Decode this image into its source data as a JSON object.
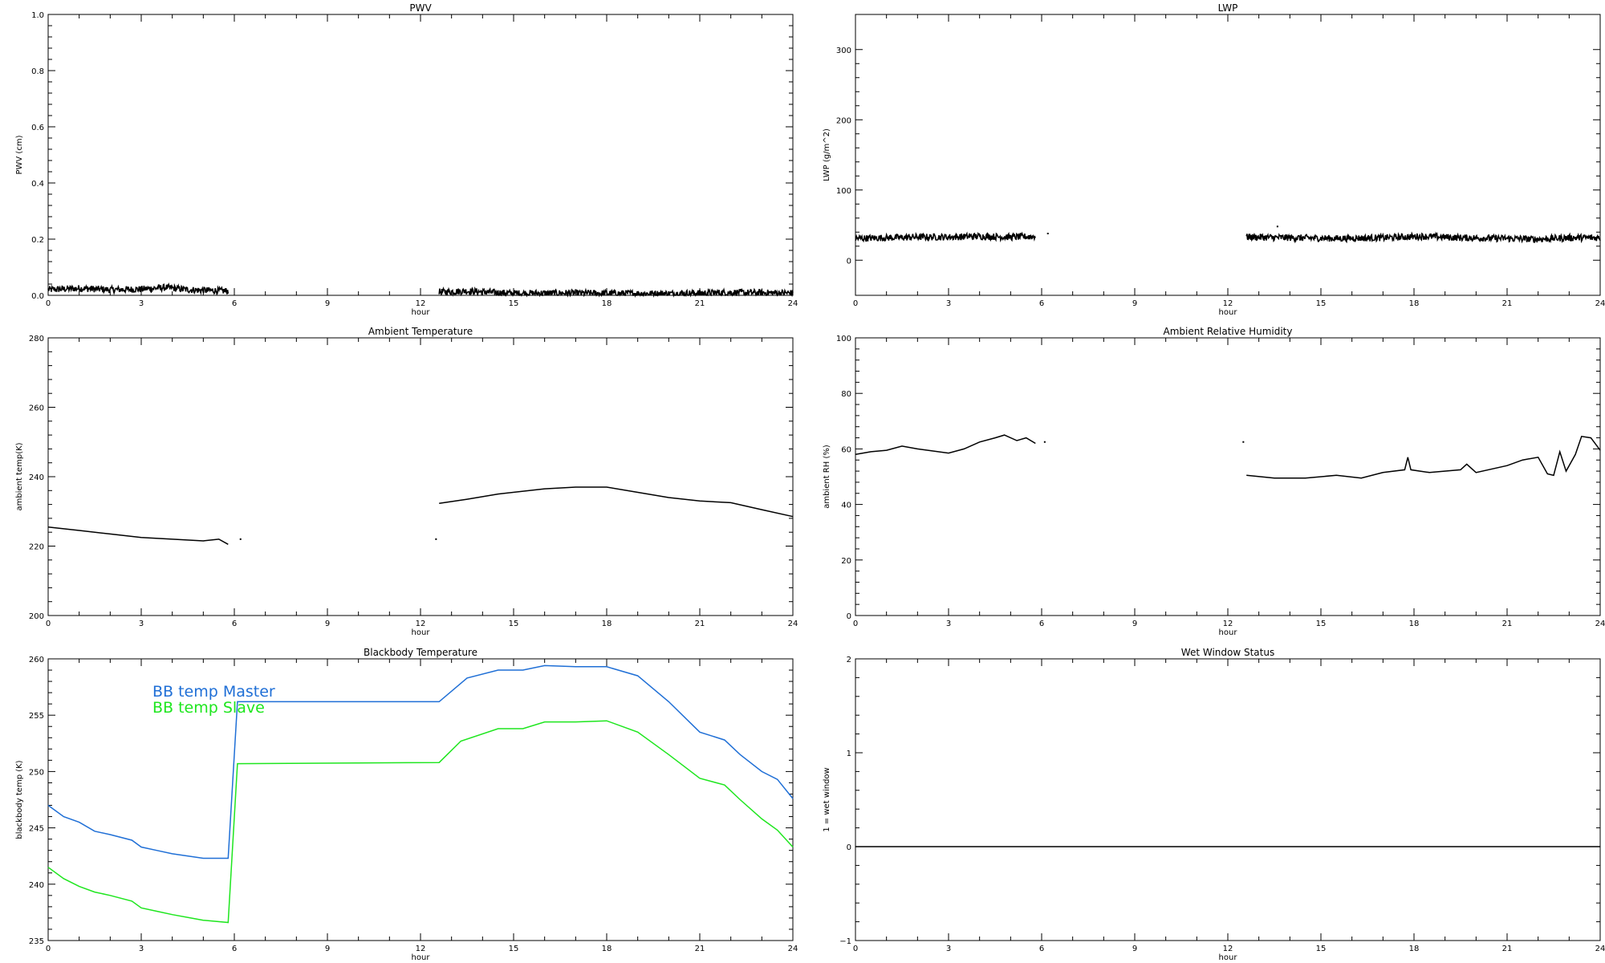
{
  "chart_data": [
    {
      "type": "line",
      "title": "PWV",
      "xlabel": "hour",
      "ylabel": "PWV (cm)",
      "xlim": [
        0,
        24
      ],
      "ylim": [
        0,
        1.0
      ],
      "xticks": [
        0,
        3,
        6,
        9,
        12,
        15,
        18,
        21,
        24
      ],
      "xtick_labels": [
        "0",
        "3",
        "6",
        "9",
        "12",
        "15",
        "18",
        "21",
        "24"
      ],
      "yticks": [
        0,
        0.2,
        0.4,
        0.6,
        0.8,
        1.0
      ],
      "ytick_labels": [
        "0.0",
        "0.2",
        "0.4",
        "0.6",
        "0.8",
        "1.0"
      ],
      "noisy": true,
      "series": [
        {
          "color": "#000000",
          "segments": [
            [
              [
                0,
                0.02
              ],
              [
                1,
                0.025
              ],
              [
                2,
                0.02
              ],
              [
                3,
                0.022
              ],
              [
                3.8,
                0.028
              ],
              [
                4.5,
                0.02
              ],
              [
                5.8,
                0.015
              ]
            ],
            [
              [
                12.6,
                0.012
              ],
              [
                13.5,
                0.015
              ],
              [
                15,
                0.007
              ],
              [
                16.5,
                0.008
              ],
              [
                18,
                0.007
              ],
              [
                20,
                0.006
              ],
              [
                22,
                0.01
              ],
              [
                24,
                0.008
              ]
            ]
          ]
        }
      ]
    },
    {
      "type": "line",
      "title": "LWP",
      "xlabel": "hour",
      "ylabel": "LWP (g/m^2)",
      "xlim": [
        0,
        24
      ],
      "ylim": [
        -50,
        350
      ],
      "xticks": [
        0,
        3,
        6,
        9,
        12,
        15,
        18,
        21,
        24
      ],
      "xtick_labels": [
        "0",
        "3",
        "6",
        "9",
        "12",
        "15",
        "18",
        "21",
        "24"
      ],
      "yticks": [
        0,
        100,
        200,
        300
      ],
      "ytick_labels": [
        "0",
        "100",
        "200",
        "300"
      ],
      "noisy": true,
      "series": [
        {
          "color": "#000000",
          "segments": [
            [
              [
                0,
                31
              ],
              [
                1,
                32
              ],
              [
                2,
                33
              ],
              [
                3,
                33
              ],
              [
                4,
                34
              ],
              [
                5,
                33
              ],
              [
                5.8,
                34
              ]
            ],
            [
              [
                12.6,
                33
              ],
              [
                14,
                32
              ],
              [
                15.5,
                31
              ],
              [
                17,
                32
              ],
              [
                18.3,
                34
              ],
              [
                19.5,
                32
              ],
              [
                21,
                31
              ],
              [
                22,
                30
              ],
              [
                23,
                32
              ],
              [
                24,
                32
              ]
            ]
          ],
          "points": [
            [
              6.2,
              38
            ],
            [
              13.6,
              48
            ]
          ]
        }
      ]
    },
    {
      "type": "line",
      "title": "Ambient Temperature",
      "xlabel": "hour",
      "ylabel": "ambient temp(K)",
      "xlim": [
        0,
        24
      ],
      "ylim": [
        200,
        280
      ],
      "xticks": [
        0,
        3,
        6,
        9,
        12,
        15,
        18,
        21,
        24
      ],
      "xtick_labels": [
        "0",
        "3",
        "6",
        "9",
        "12",
        "15",
        "18",
        "21",
        "24"
      ],
      "yticks": [
        200,
        220,
        240,
        260,
        280
      ],
      "ytick_labels": [
        "200",
        "220",
        "240",
        "260",
        "280"
      ],
      "noisy": false,
      "series": [
        {
          "color": "#000000",
          "segments": [
            [
              [
                0,
                225.5
              ],
              [
                0.5,
                225
              ],
              [
                1,
                224.5
              ],
              [
                2,
                223.5
              ],
              [
                3,
                222.5
              ],
              [
                4,
                222
              ],
              [
                5,
                221.5
              ],
              [
                5.5,
                222
              ],
              [
                5.8,
                220.5
              ]
            ],
            [
              [
                12.6,
                232.3
              ],
              [
                13.5,
                233.5
              ],
              [
                14.5,
                235
              ],
              [
                16,
                236.5
              ],
              [
                17,
                237
              ],
              [
                18,
                237
              ],
              [
                19,
                235.5
              ],
              [
                20,
                234
              ],
              [
                21,
                233
              ],
              [
                22,
                232.5
              ],
              [
                23,
                230.5
              ],
              [
                24,
                228.5
              ]
            ]
          ],
          "points": [
            [
              6.2,
              222
            ],
            [
              12.5,
              222
            ]
          ]
        }
      ]
    },
    {
      "type": "line",
      "title": "Ambient Relative Humidity",
      "xlabel": "hour",
      "ylabel": "ambient RH (%)",
      "xlim": [
        0,
        24
      ],
      "ylim": [
        0,
        100
      ],
      "xticks": [
        0,
        3,
        6,
        9,
        12,
        15,
        18,
        21,
        24
      ],
      "xtick_labels": [
        "0",
        "3",
        "6",
        "9",
        "12",
        "15",
        "18",
        "21",
        "24"
      ],
      "yticks": [
        0,
        20,
        40,
        60,
        80,
        100
      ],
      "ytick_labels": [
        "0",
        "20",
        "40",
        "60",
        "80",
        "100"
      ],
      "noisy": false,
      "series": [
        {
          "color": "#000000",
          "segments": [
            [
              [
                0,
                58
              ],
              [
                0.5,
                59
              ],
              [
                1,
                59.5
              ],
              [
                1.5,
                61
              ],
              [
                2,
                60
              ],
              [
                3,
                58.5
              ],
              [
                3.5,
                60
              ],
              [
                4,
                62.5
              ],
              [
                4.5,
                64
              ],
              [
                4.8,
                65
              ],
              [
                5.2,
                63
              ],
              [
                5.5,
                64
              ],
              [
                5.8,
                62
              ]
            ],
            [
              [
                12.6,
                50.5
              ],
              [
                13.5,
                49.5
              ],
              [
                14.5,
                49.5
              ],
              [
                15.5,
                50.5
              ],
              [
                16.3,
                49.5
              ],
              [
                17,
                51.5
              ],
              [
                17.7,
                52.5
              ],
              [
                17.8,
                57
              ],
              [
                17.9,
                52.5
              ],
              [
                18.5,
                51.5
              ],
              [
                19.5,
                52.5
              ],
              [
                19.7,
                54.5
              ],
              [
                20,
                51.5
              ],
              [
                21,
                54
              ],
              [
                21.5,
                56
              ],
              [
                22,
                57
              ],
              [
                22.3,
                51
              ],
              [
                22.5,
                50.5
              ],
              [
                22.7,
                59
              ],
              [
                22.9,
                52
              ],
              [
                23.2,
                58
              ],
              [
                23.4,
                64.5
              ],
              [
                23.7,
                64
              ],
              [
                24,
                59.5
              ]
            ]
          ],
          "points": [
            [
              6.1,
              62.5
            ],
            [
              12.5,
              62.5
            ]
          ]
        }
      ]
    },
    {
      "type": "line",
      "title": "Blackbody Temperature",
      "xlabel": "hour",
      "ylabel": "blackbody temp (K)",
      "xlim": [
        0,
        24
      ],
      "ylim": [
        235,
        260
      ],
      "xticks": [
        0,
        3,
        6,
        9,
        12,
        15,
        18,
        21,
        24
      ],
      "xtick_labels": [
        "0",
        "3",
        "6",
        "9",
        "12",
        "15",
        "18",
        "21",
        "24"
      ],
      "yticks": [
        235,
        240,
        245,
        250,
        255,
        260
      ],
      "ytick_labels": [
        "235",
        "240",
        "245",
        "250",
        "255",
        "260"
      ],
      "noisy": false,
      "legend": [
        {
          "name": "BB temp Master",
          "color": "#1f6fd6"
        },
        {
          "name": "BB temp Slave",
          "color": "#1ee61e"
        }
      ],
      "series": [
        {
          "name": "BB temp Master",
          "color": "#1f6fd6",
          "segments": [
            [
              [
                0,
                247
              ],
              [
                0.5,
                246
              ],
              [
                1,
                245.5
              ],
              [
                1.5,
                244.7
              ],
              [
                2,
                244.4
              ],
              [
                2.7,
                243.9
              ],
              [
                3,
                243.3
              ],
              [
                3.5,
                243
              ],
              [
                4,
                242.7
              ],
              [
                5,
                242.3
              ],
              [
                5.8,
                242.3
              ],
              [
                6.1,
                256.2
              ],
              [
                12.6,
                256.2
              ],
              [
                13.5,
                258.3
              ],
              [
                14.5,
                259
              ],
              [
                15.3,
                259
              ],
              [
                16,
                259.4
              ],
              [
                17,
                259.3
              ],
              [
                18,
                259.3
              ],
              [
                19,
                258.5
              ],
              [
                20,
                256.2
              ],
              [
                21,
                253.5
              ],
              [
                21.8,
                252.8
              ],
              [
                22.3,
                251.5
              ],
              [
                23,
                250
              ],
              [
                23.5,
                249.3
              ],
              [
                24,
                247.6
              ]
            ]
          ]
        },
        {
          "name": "BB temp Slave",
          "color": "#1ee61e",
          "segments": [
            [
              [
                0,
                241.5
              ],
              [
                0.5,
                240.5
              ],
              [
                1,
                239.8
              ],
              [
                1.5,
                239.3
              ],
              [
                2,
                239
              ],
              [
                2.7,
                238.5
              ],
              [
                3,
                237.9
              ],
              [
                3.5,
                237.6
              ],
              [
                4,
                237.3
              ],
              [
                5,
                236.8
              ],
              [
                5.8,
                236.6
              ],
              [
                6.1,
                250.7
              ],
              [
                12.6,
                250.8
              ],
              [
                13.3,
                252.7
              ],
              [
                14.5,
                253.8
              ],
              [
                15.3,
                253.8
              ],
              [
                16,
                254.4
              ],
              [
                17,
                254.4
              ],
              [
                18,
                254.5
              ],
              [
                19,
                253.5
              ],
              [
                20,
                251.5
              ],
              [
                21,
                249.4
              ],
              [
                21.8,
                248.8
              ],
              [
                22.3,
                247.5
              ],
              [
                23,
                245.8
              ],
              [
                23.5,
                244.8
              ],
              [
                24,
                243.3
              ]
            ]
          ]
        }
      ]
    },
    {
      "type": "line",
      "title": "Wet Window Status",
      "xlabel": "hour",
      "ylabel": "1 = wet window",
      "xlim": [
        0,
        24
      ],
      "ylim": [
        -1,
        2
      ],
      "xticks": [
        0,
        3,
        6,
        9,
        12,
        15,
        18,
        21,
        24
      ],
      "xtick_labels": [
        "0",
        "3",
        "6",
        "9",
        "12",
        "15",
        "18",
        "21",
        "24"
      ],
      "yticks": [
        -1,
        0,
        1,
        2
      ],
      "ytick_labels": [
        "−1",
        "0",
        "1",
        "2"
      ],
      "noisy": false,
      "series": [
        {
          "color": "#000000",
          "segments": [
            [
              [
                0,
                0
              ],
              [
                24,
                0
              ]
            ]
          ]
        }
      ]
    }
  ]
}
